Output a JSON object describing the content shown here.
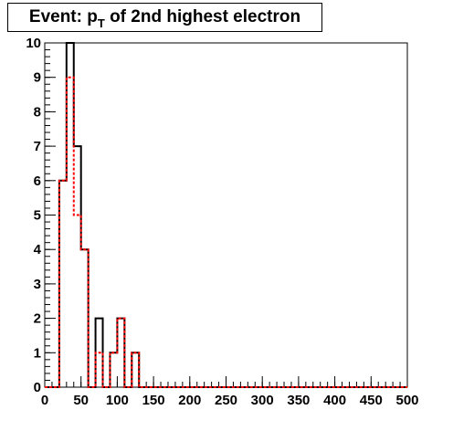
{
  "chart_data": {
    "type": "histogram",
    "title_parts": {
      "prefix": "Event: p",
      "subscript": "T",
      "suffix": " of 2nd highest electron"
    },
    "xlabel": "",
    "ylabel": "",
    "xlim": [
      0,
      500
    ],
    "ylim": [
      0,
      10
    ],
    "bin_width": 10,
    "x_ticks": [
      0,
      50,
      100,
      150,
      200,
      250,
      300,
      350,
      400,
      450,
      500
    ],
    "y_ticks": [
      0,
      1,
      2,
      3,
      4,
      5,
      6,
      7,
      8,
      9,
      10
    ],
    "grid": false,
    "series": [
      {
        "color": "#000000",
        "style": "solid",
        "bin_lows": [
          0,
          10,
          20,
          30,
          40,
          50,
          60,
          70,
          80,
          90,
          100,
          110,
          120,
          130,
          140
        ],
        "values": [
          0,
          0,
          6,
          10,
          7,
          4,
          0,
          2,
          0,
          1,
          2,
          0,
          1,
          0,
          0
        ]
      },
      {
        "color": "#ff0000",
        "style": "dashed",
        "bin_lows": [
          0,
          10,
          20,
          30,
          40,
          50,
          60,
          70,
          80,
          90,
          100,
          110,
          120,
          130,
          140
        ],
        "values": [
          0,
          0,
          6,
          9,
          5,
          4,
          0,
          1,
          0,
          1,
          2,
          0,
          1,
          0,
          0
        ]
      }
    ]
  }
}
